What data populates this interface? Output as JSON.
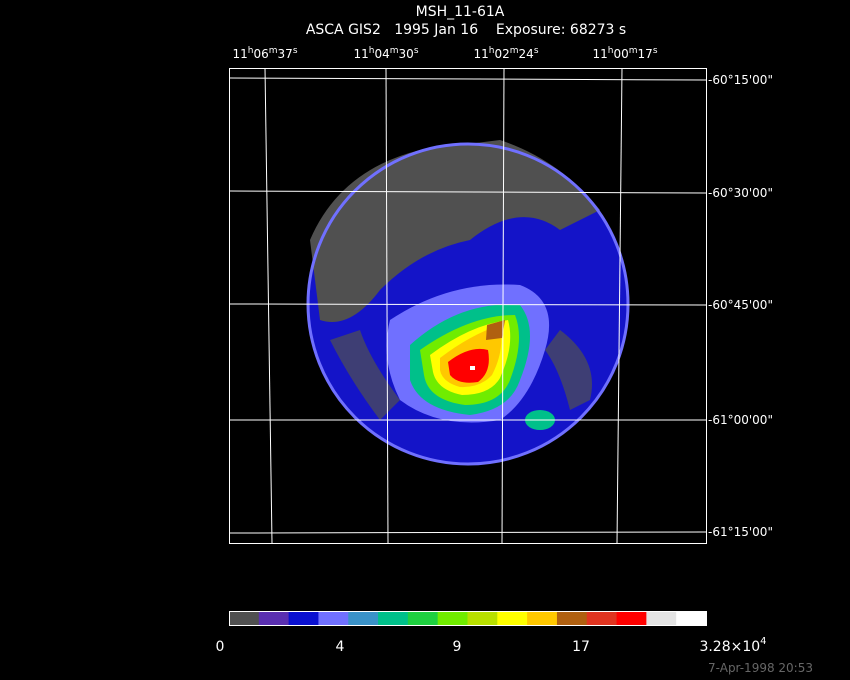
{
  "header": {
    "title": "MSH_11-61A",
    "subtitle": "ASCA GIS2   1995 Jan 16    Exposure: 68273 s"
  },
  "ra_labels": [
    [
      "11",
      "h",
      "06",
      "m",
      "37",
      "s"
    ],
    [
      "11",
      "h",
      "04",
      "m",
      "30",
      "s"
    ],
    [
      "11",
      "h",
      "02",
      "m",
      "24",
      "s"
    ],
    [
      "11",
      "h",
      "00",
      "m",
      "17",
      "s"
    ]
  ],
  "dec_labels": [
    "-60°15'00\"",
    "-60°30'00\"",
    "-60°45'00\"",
    "-61°00'00\"",
    "-61°15'00\""
  ],
  "colorbar": {
    "colors": [
      "#505050",
      "#5a2fb0",
      "#0a10d0",
      "#7070ff",
      "#3a92c8",
      "#00c08a",
      "#1ed040",
      "#70ec00",
      "#b8e000",
      "#ffff00",
      "#ffc800",
      "#b06010",
      "#e03420",
      "#ff0000",
      "#e4e4e4",
      "#ffffff"
    ],
    "labels": [
      "0",
      "4",
      "9",
      "17"
    ],
    "max_label": {
      "mantissa": "3.28×10",
      "exponent": "4"
    }
  },
  "timestamp": "7-Apr-1998 20:53"
}
